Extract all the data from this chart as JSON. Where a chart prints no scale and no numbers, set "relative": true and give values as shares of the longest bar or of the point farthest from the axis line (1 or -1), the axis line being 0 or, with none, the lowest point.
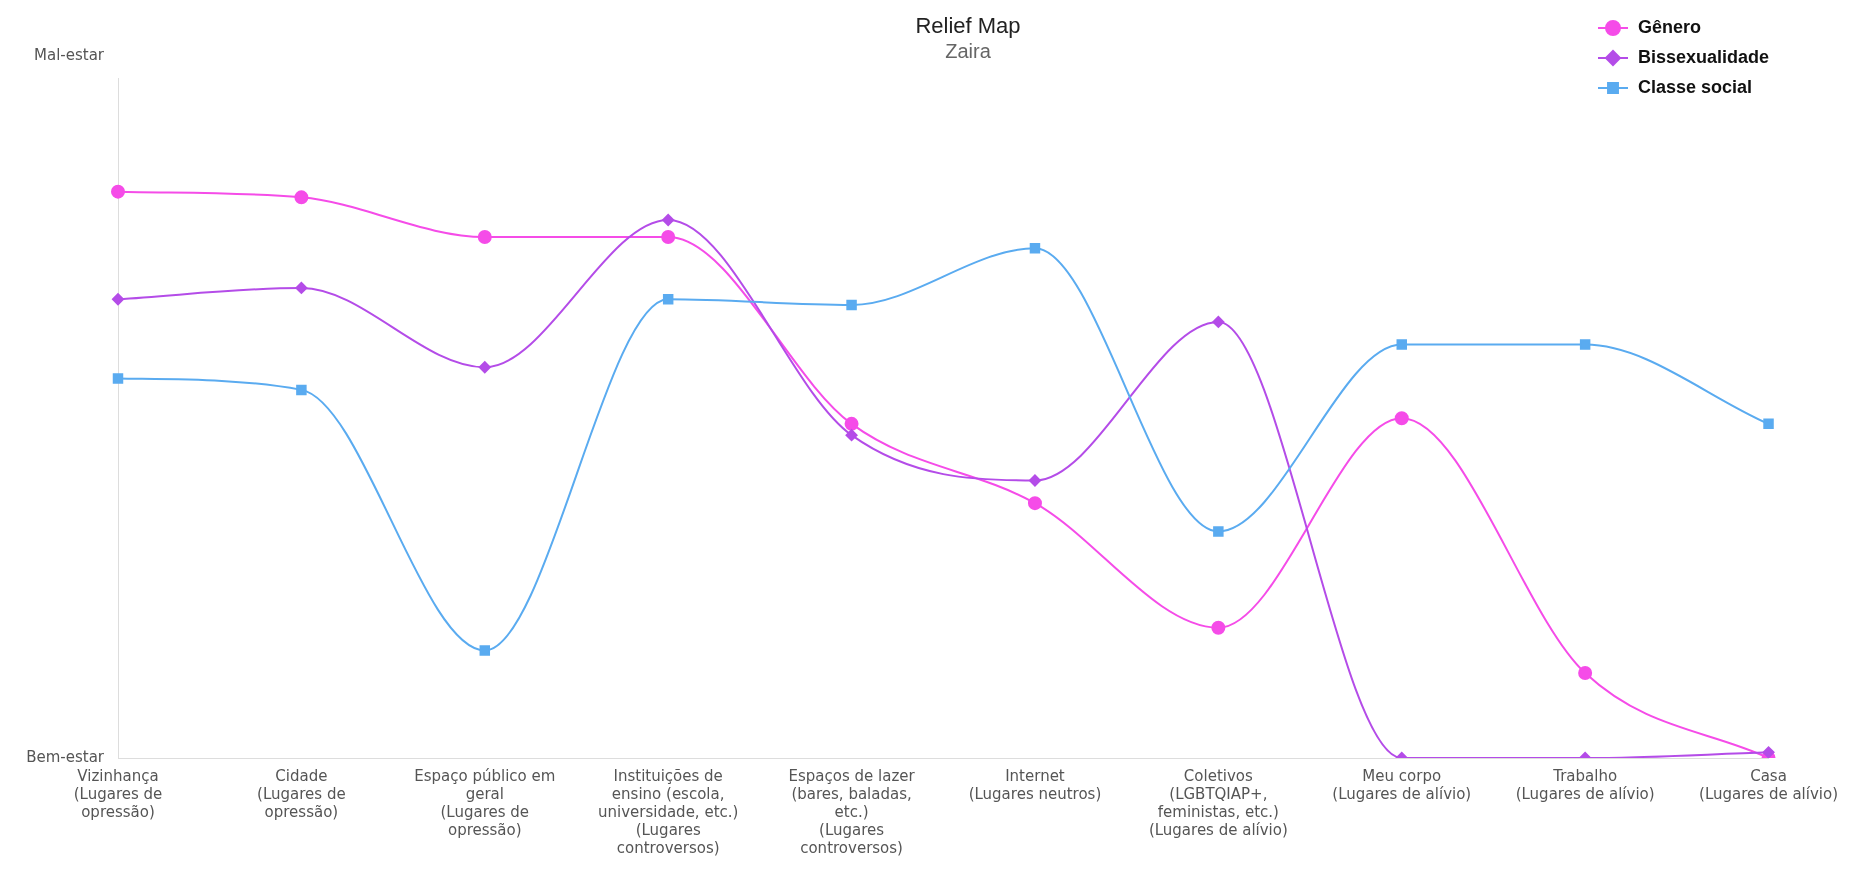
{
  "chart_data": {
    "type": "line",
    "title": "Relief Map",
    "subtitle": "Zaira",
    "relative": true,
    "annotations": [
      "Mal-estar",
      "Bem-estar"
    ],
    "categories": [
      "Vizinhança\n(Lugares de\nopressão)",
      "Cidade\n(Lugares de\nopressão)",
      "Espaço público em\ngeral\n(Lugares de\nopressão)",
      "Instituições de\nensino (escola,\nuniversidade, etc.)\n(Lugares\ncontroversos)",
      "Espaços de lazer\n(bares, baladas,\netc.)\n(Lugares\ncontroversos)",
      "Internet\n(Lugares neutros)",
      "Coletivos\n(LGBTQIAP+,\nfeministas, etc.)\n(Lugares de alívio)",
      "Meu corpo\n(Lugares de alívio)",
      "Trabalho\n(Lugares de alívio)",
      "Casa\n(Lugares de alívio)"
    ],
    "series": [
      {
        "name": "Gênero",
        "color": "#f54ce8",
        "marker": "circle",
        "values": [
          1,
          0.99,
          0.92,
          0.92,
          0.59,
          0.45,
          0.23,
          0.6,
          0.15,
          0
        ]
      },
      {
        "name": "Bissexualidade",
        "color": "#b44ce8",
        "marker": "diamond",
        "values": [
          0.81,
          0.83,
          0.69,
          0.95,
          0.57,
          0.49,
          0.77,
          0,
          0,
          0.01
        ]
      },
      {
        "name": "Classe social",
        "color": "#5aabf0",
        "marker": "square",
        "values": [
          0.67,
          0.65,
          0.19,
          0.81,
          0.8,
          0.9,
          0.4,
          0.73,
          0.73,
          0.59
        ]
      }
    ],
    "grid": false,
    "legend": "top right",
    "line_style": "solid"
  }
}
